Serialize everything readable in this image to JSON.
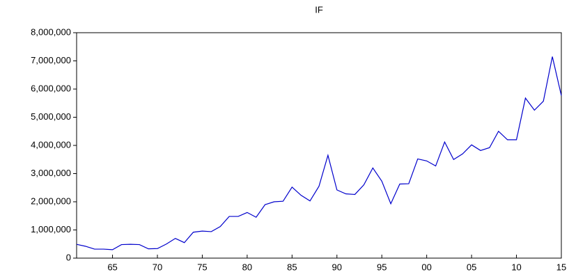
{
  "chart_data": {
    "type": "line",
    "title": "IF",
    "x": [
      1961,
      1962,
      1963,
      1964,
      1965,
      1966,
      1967,
      1968,
      1969,
      1970,
      1971,
      1972,
      1973,
      1974,
      1975,
      1976,
      1977,
      1978,
      1979,
      1980,
      1981,
      1982,
      1983,
      1984,
      1985,
      1986,
      1987,
      1988,
      1989,
      1990,
      1991,
      1992,
      1993,
      1994,
      1995,
      1996,
      1997,
      1998,
      1999,
      2000,
      2001,
      2002,
      2003,
      2004,
      2005,
      2006,
      2007,
      2008,
      2009,
      2010,
      2011,
      2012,
      2013,
      2014,
      2015
    ],
    "series": [
      {
        "name": "IF",
        "color": "#0000cc",
        "values": [
          490000,
          420000,
          320000,
          320000,
          300000,
          480000,
          490000,
          480000,
          330000,
          340000,
          500000,
          700000,
          550000,
          920000,
          960000,
          940000,
          1120000,
          1480000,
          1480000,
          1620000,
          1450000,
          1900000,
          2000000,
          2020000,
          2520000,
          2230000,
          2030000,
          2550000,
          3650000,
          2420000,
          2280000,
          2260000,
          2600000,
          3200000,
          2730000,
          1930000,
          2630000,
          2640000,
          3520000,
          3450000,
          3270000,
          4120000,
          3500000,
          3700000,
          4020000,
          3820000,
          3920000,
          4500000,
          4200000,
          4200000,
          5680000,
          5250000,
          5570000,
          7150000,
          5770000
        ]
      }
    ],
    "xlim": [
      1961,
      2015
    ],
    "xticks": [
      {
        "value": 1965,
        "label": "65"
      },
      {
        "value": 1970,
        "label": "70"
      },
      {
        "value": 1975,
        "label": "75"
      },
      {
        "value": 1980,
        "label": "80"
      },
      {
        "value": 1985,
        "label": "85"
      },
      {
        "value": 1990,
        "label": "90"
      },
      {
        "value": 1995,
        "label": "95"
      },
      {
        "value": 2000,
        "label": "00"
      },
      {
        "value": 2005,
        "label": "05"
      },
      {
        "value": 2010,
        "label": "10"
      },
      {
        "value": 2015,
        "label": "15"
      }
    ],
    "ylim": [
      0,
      8000000
    ],
    "yticks": [
      0,
      {
        "value": 1000000,
        "label": "1,000,000"
      },
      {
        "value": 2000000,
        "label": "2,000,000"
      },
      {
        "value": 3000000,
        "label": "3,000,000"
      },
      {
        "value": 4000000,
        "label": "4,000,000"
      },
      {
        "value": 5000000,
        "label": "5,000,000"
      },
      {
        "value": 6000000,
        "label": "6,000,000"
      },
      {
        "value": 7000000,
        "label": "7,000,000"
      },
      {
        "value": 8000000,
        "label": "8,000,000"
      }
    ],
    "grid": false
  }
}
